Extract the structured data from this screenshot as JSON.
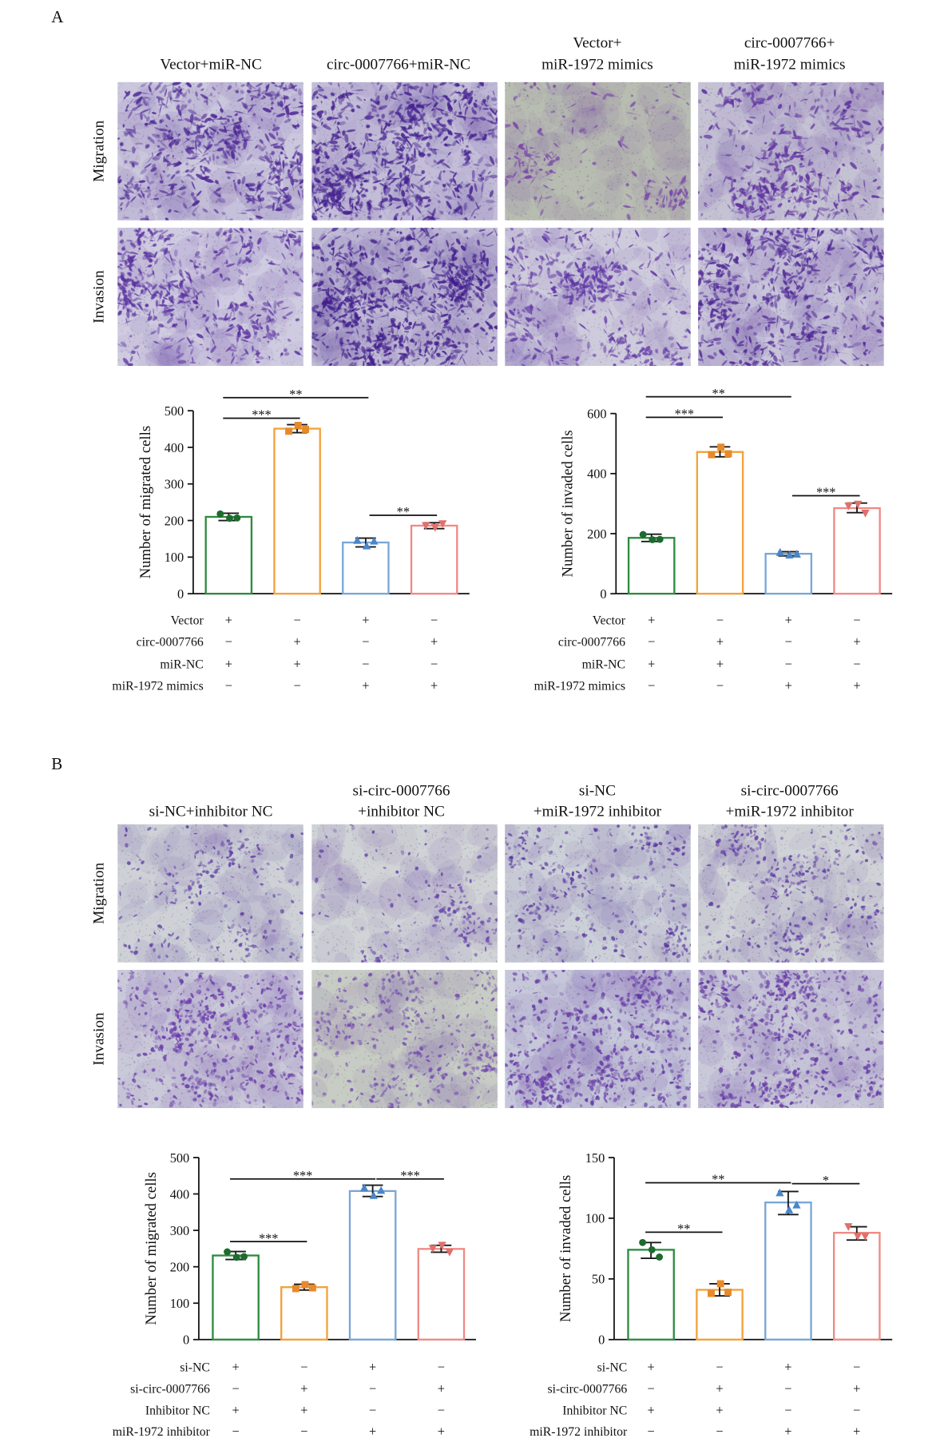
{
  "panels": {
    "A": {
      "letter": "A",
      "columns": [
        [
          "Vector+miR-NC"
        ],
        [
          "circ-0007766+miR-NC"
        ],
        [
          "Vector+",
          "miR-1972 mimics"
        ],
        [
          "circ-0007766+",
          "miR-1972 mimics"
        ]
      ],
      "rows": [
        "Migration",
        "Invasion"
      ]
    },
    "B": {
      "letter": "B",
      "columns": [
        [
          "si-NC+inhibitor NC"
        ],
        [
          "si-circ-0007766",
          "+inhibitor NC"
        ],
        [
          "si-NC",
          "+miR-1972 inhibitor"
        ],
        [
          "si-circ-0007766",
          "+miR-1972 inhibitor"
        ]
      ],
      "rows": [
        "Migration",
        "Invasion"
      ]
    }
  },
  "chart_data": [
    {
      "type": "bar",
      "ylabel": "Number of migrated cells",
      "ylim": [
        0,
        500
      ],
      "yticks": [
        0,
        100,
        200,
        300,
        400,
        500
      ],
      "conditions": [
        {
          "label": "Vector",
          "signs": [
            "+",
            "−",
            "+",
            "−"
          ]
        },
        {
          "label": "circ-0007766",
          "signs": [
            "−",
            "+",
            "−",
            "+"
          ]
        },
        {
          "label": "miR-NC",
          "signs": [
            "+",
            "+",
            "−",
            "−"
          ]
        },
        {
          "label": "miR-1972 mimics",
          "signs": [
            "−",
            "−",
            "+",
            "+"
          ]
        }
      ],
      "values": [
        210,
        451,
        140,
        186
      ],
      "error_range": [
        [
          200,
          220
        ],
        [
          440,
          462
        ],
        [
          128,
          152
        ],
        [
          178,
          194
        ]
      ],
      "points": [
        [
          218,
          206,
          207
        ],
        [
          444,
          460,
          449
        ],
        [
          146,
          131,
          144
        ],
        [
          186,
          181,
          191
        ]
      ],
      "significance": [
        {
          "groups": [
            1,
            3
          ],
          "label": "**"
        },
        {
          "groups": [
            1,
            2
          ],
          "label": "***"
        },
        {
          "groups": [
            3,
            4
          ],
          "label": "**"
        }
      ],
      "colors": {
        "bars": [
          "#2e8b40",
          "#f2a23c",
          "#79a7d6",
          "#ee8a86"
        ],
        "points": [
          "#1d6b2e",
          "#e8892a",
          "#4a86c8",
          "#e0706a"
        ]
      },
      "markers": [
        "circle",
        "square",
        "triangle-up",
        "triangle-down"
      ]
    },
    {
      "type": "bar",
      "ylabel": "Number of invaded cells",
      "ylim": [
        0,
        600
      ],
      "yticks": [
        0,
        200,
        400,
        600
      ],
      "conditions": [
        {
          "label": "Vector",
          "signs": [
            "+",
            "−",
            "+",
            "−"
          ]
        },
        {
          "label": "circ-0007766",
          "signs": [
            "−",
            "+",
            "−",
            "+"
          ]
        },
        {
          "label": "miR-NC",
          "signs": [
            "+",
            "+",
            "−",
            "−"
          ]
        },
        {
          "label": "miR-1972 mimics",
          "signs": [
            "−",
            "−",
            "+",
            "+"
          ]
        }
      ],
      "values": [
        186,
        472,
        133,
        285
      ],
      "error_range": [
        [
          174,
          198
        ],
        [
          456,
          489
        ],
        [
          126,
          140
        ],
        [
          270,
          302
        ]
      ],
      "points": [
        [
          197,
          180,
          181
        ],
        [
          463,
          488,
          466
        ],
        [
          138,
          129,
          132
        ],
        [
          292,
          298,
          268
        ]
      ],
      "significance": [
        {
          "groups": [
            1,
            3
          ],
          "label": "**"
        },
        {
          "groups": [
            1,
            2
          ],
          "label": "***"
        },
        {
          "groups": [
            3,
            4
          ],
          "label": "***"
        }
      ],
      "colors": {
        "bars": [
          "#2e8b40",
          "#f2a23c",
          "#79a7d6",
          "#ee8a86"
        ],
        "points": [
          "#1d6b2e",
          "#e8892a",
          "#4a86c8",
          "#e0706a"
        ]
      },
      "markers": [
        "circle",
        "square",
        "triangle-up",
        "triangle-down"
      ]
    },
    {
      "type": "bar",
      "ylabel": "Number of migrated cells",
      "ylim": [
        0,
        500
      ],
      "yticks": [
        0,
        100,
        200,
        300,
        400,
        500
      ],
      "conditions": [
        {
          "label": "si-NC",
          "signs": [
            "+",
            "−",
            "+",
            "−"
          ]
        },
        {
          "label": "si-circ-0007766",
          "signs": [
            "−",
            "+",
            "−",
            "+"
          ]
        },
        {
          "label": "Inhibitor NC",
          "signs": [
            "+",
            "+",
            "−",
            "−"
          ]
        },
        {
          "label": "miR-1972 inhibitor",
          "signs": [
            "−",
            "−",
            "+",
            "+"
          ]
        }
      ],
      "values": [
        231,
        144,
        408,
        249
      ],
      "error_range": [
        [
          220,
          242
        ],
        [
          136,
          152
        ],
        [
          393,
          424
        ],
        [
          240,
          259
        ]
      ],
      "points": [
        [
          241,
          226,
          228
        ],
        [
          140,
          151,
          142
        ],
        [
          417,
          396,
          410
        ],
        [
          250,
          259,
          240
        ]
      ],
      "significance": [
        {
          "groups": [
            1,
            3
          ],
          "label": "***"
        },
        {
          "groups": [
            3,
            4
          ],
          "label": "***"
        },
        {
          "groups": [
            1,
            2
          ],
          "label": "***"
        }
      ],
      "colors": {
        "bars": [
          "#2e8b40",
          "#f2a23c",
          "#79a7d6",
          "#ee8a86"
        ],
        "points": [
          "#1d6b2e",
          "#e8892a",
          "#4a86c8",
          "#e0706a"
        ]
      },
      "markers": [
        "circle",
        "square",
        "triangle-up",
        "triangle-down"
      ]
    },
    {
      "type": "bar",
      "ylabel": "Number of invaded cells",
      "ylim": [
        0,
        150
      ],
      "yticks": [
        0,
        50,
        100,
        150
      ],
      "conditions": [
        {
          "label": "si-NC",
          "signs": [
            "+",
            "−",
            "+",
            "−"
          ]
        },
        {
          "label": "si-circ-0007766",
          "signs": [
            "−",
            "+",
            "−",
            "+"
          ]
        },
        {
          "label": "Inhibitor NC",
          "signs": [
            "+",
            "+",
            "−",
            "−"
          ]
        },
        {
          "label": "miR-1972 inhibitor",
          "signs": [
            "−",
            "−",
            "+",
            "+"
          ]
        }
      ],
      "values": [
        74,
        41,
        113,
        88
      ],
      "error_range": [
        [
          67,
          80
        ],
        [
          36,
          46
        ],
        [
          103,
          122
        ],
        [
          82,
          93
        ]
      ],
      "points": [
        [
          80,
          74,
          68
        ],
        [
          38,
          46,
          39
        ],
        [
          121,
          107,
          111
        ],
        [
          93,
          85,
          85
        ]
      ],
      "significance": [
        {
          "groups": [
            1,
            3
          ],
          "label": "**"
        },
        {
          "groups": [
            3,
            4
          ],
          "label": "*"
        },
        {
          "groups": [
            1,
            2
          ],
          "label": "**"
        }
      ],
      "colors": {
        "bars": [
          "#2e8b40",
          "#f2a23c",
          "#79a7d6",
          "#ee8a86"
        ],
        "points": [
          "#1d6b2e",
          "#e8892a",
          "#4a86c8",
          "#e0706a"
        ]
      },
      "markers": [
        "circle",
        "square",
        "triangle-up",
        "triangle-down"
      ]
    }
  ]
}
